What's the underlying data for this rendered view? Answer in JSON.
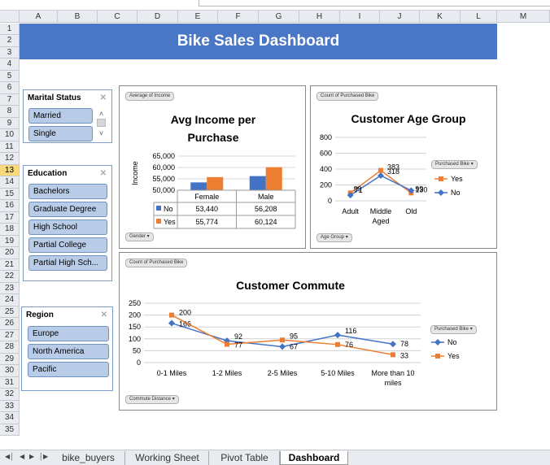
{
  "banner": {
    "title": "Bike Sales Dashboard"
  },
  "columns": [
    "A",
    "B",
    "C",
    "D",
    "E",
    "F",
    "G",
    "H",
    "I",
    "J",
    "K",
    "L",
    "M"
  ],
  "rows": [
    "1",
    "2",
    "3",
    "4",
    "5",
    "6",
    "7",
    "8",
    "9",
    "10",
    "11",
    "12",
    "13",
    "14",
    "15",
    "16",
    "17",
    "18",
    "19",
    "20",
    "21",
    "22",
    "23",
    "24",
    "25",
    "26",
    "27",
    "28",
    "29",
    "30",
    "31",
    "32",
    "33",
    "34",
    "35"
  ],
  "selected_row": "13",
  "slicers": {
    "marital": {
      "title": "Marital Status",
      "items": [
        "Married",
        "Single"
      ]
    },
    "education": {
      "title": "Education",
      "items": [
        "Bachelors",
        "Graduate Degree",
        "High School",
        "Partial College",
        "Partial High Sch..."
      ]
    },
    "region": {
      "title": "Region",
      "items": [
        "Europe",
        "North America",
        "Pacific"
      ]
    }
  },
  "income_panel": {
    "field_button": "Average of Income",
    "axis_button": "Gender",
    "title_line1": "Avg Income per",
    "title_line2": "Purchase",
    "ylabel": "Income"
  },
  "age_panel": {
    "field_button": "Count of Purchased Bike",
    "axis_button": "Age Group",
    "legend_button": "Purchased Bike",
    "title": "Customer Age Group"
  },
  "commute_panel": {
    "field_button": "Count of Purchased Bike",
    "axis_button": "Commute Distance",
    "legend_button": "Purchased Bike",
    "title": "Customer Commute"
  },
  "chart_data": [
    {
      "type": "bar",
      "title": "Avg Income per Purchase",
      "ylabel": "Income",
      "categories": [
        "Female",
        "Male"
      ],
      "series": [
        {
          "name": "No",
          "values": [
            53440,
            56208
          ],
          "labels": [
            "53,440",
            "56,208"
          ],
          "color": "#4472c4"
        },
        {
          "name": "Yes",
          "values": [
            55774,
            60124
          ],
          "labels": [
            "55,774",
            "60,124"
          ],
          "color": "#ed7d31"
        }
      ],
      "ylim": [
        50000,
        65000
      ],
      "yticks": [
        "65,000",
        "60,000",
        "55,000",
        "50,000"
      ],
      "data_table": true
    },
    {
      "type": "line",
      "title": "Customer Age Group",
      "categories": [
        "Adult",
        "Middle Aged",
        "Old"
      ],
      "series": [
        {
          "name": "Yes",
          "values": [
            99,
            383,
            99
          ],
          "color": "#ed7d31"
        },
        {
          "name": "No",
          "values": [
            71,
            318,
            130
          ],
          "color": "#4472c4"
        }
      ],
      "ylim": [
        0,
        800
      ],
      "yticks": [
        "800",
        "600",
        "400",
        "200",
        "0"
      ],
      "legend": "right"
    },
    {
      "type": "line",
      "title": "Customer Commute",
      "categories": [
        "0-1 Miles",
        "1-2 Miles",
        "2-5 Miles",
        "5-10 Miles",
        "More than 10 miles"
      ],
      "series": [
        {
          "name": "No",
          "values": [
            166,
            92,
            67,
            116,
            78
          ],
          "color": "#4472c4"
        },
        {
          "name": "Yes",
          "values": [
            200,
            77,
            95,
            76,
            33
          ],
          "color": "#ed7d31"
        }
      ],
      "ylim": [
        0,
        250
      ],
      "yticks": [
        "250",
        "200",
        "150",
        "100",
        "50",
        "0"
      ],
      "legend": "right"
    }
  ],
  "sheet_tabs": [
    "bike_buyers",
    "Working Sheet",
    "Pivot Table",
    "Dashboard"
  ],
  "active_tab": "Dashboard",
  "nav_icons": [
    "first-sheet-icon",
    "prev-sheet-icon",
    "next-sheet-icon",
    "last-sheet-icon"
  ]
}
